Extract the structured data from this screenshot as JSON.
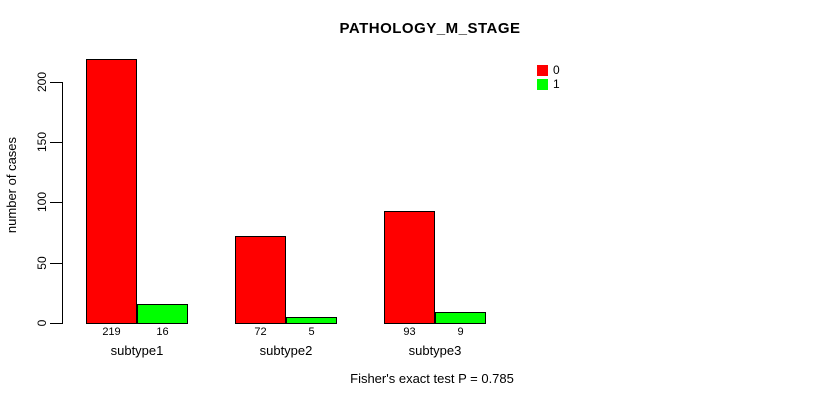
{
  "title": "PATHOLOGY_M_STAGE",
  "footnote": "Fisher's exact test P = 0.785",
  "chart_data": {
    "type": "bar",
    "title": "PATHOLOGY_M_STAGE",
    "xlabel": "",
    "ylabel": "number of cases",
    "categories": [
      "subtype1",
      "subtype2",
      "subtype3"
    ],
    "series": [
      {
        "name": "0",
        "color": "#FF0000",
        "values": [
          219,
          72,
          93
        ]
      },
      {
        "name": "1",
        "color": "#00FF00",
        "values": [
          16,
          5,
          9
        ]
      }
    ],
    "bar_value_labels": [
      [
        "219",
        "16"
      ],
      [
        "72",
        "5"
      ],
      [
        "93",
        "9"
      ]
    ],
    "yticks": [
      0,
      50,
      100,
      150,
      200
    ],
    "ylim": [
      0,
      221
    ],
    "grid": false,
    "legend_position": "top-right",
    "annotation": "Fisher's exact test P = 0.785"
  }
}
